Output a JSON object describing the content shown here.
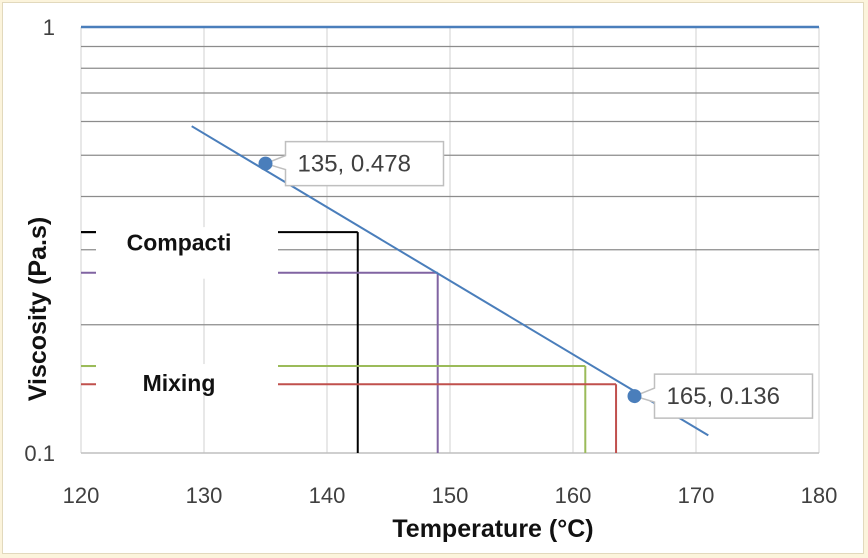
{
  "chart_data": {
    "type": "line",
    "xlabel": "Temperature (°C)",
    "ylabel": "Viscosity (Pa.s)",
    "xlim": [
      120,
      180
    ],
    "ylim": [
      0.1,
      1
    ],
    "y_scale": "log",
    "x_ticks": [
      120,
      130,
      140,
      150,
      160,
      170,
      180
    ],
    "y_ticks": [
      0.1,
      1
    ],
    "y_tick_labels": [
      "0.1",
      "1"
    ],
    "y_minor_gridlines": [
      0.2,
      0.3,
      0.4,
      0.5,
      0.6,
      0.7,
      0.8,
      0.9
    ],
    "grid": true,
    "series": [
      {
        "color": "#4a7ebb",
        "x": [
          129,
          171
        ],
        "y": [
          0.585,
          0.11
        ]
      }
    ],
    "data_labels": [
      {
        "x": 135,
        "y": 0.478,
        "text": "135, 0.478",
        "side": "right"
      },
      {
        "x": 165,
        "y": 0.136,
        "text": "165, 0.136",
        "side": "right"
      }
    ],
    "zones": [
      {
        "label": "Compacti",
        "lines": [
          {
            "color": "#000000",
            "x_end": 142.5,
            "y": 0.33
          },
          {
            "color": "#8064a2",
            "x_end": 149,
            "y": 0.265
          }
        ]
      },
      {
        "label": "Mixing",
        "lines": [
          {
            "color": "#9bbb59",
            "x_end": 161,
            "y": 0.16
          },
          {
            "color": "#c0504d",
            "x_end": 163.5,
            "y": 0.145
          }
        ]
      }
    ]
  }
}
